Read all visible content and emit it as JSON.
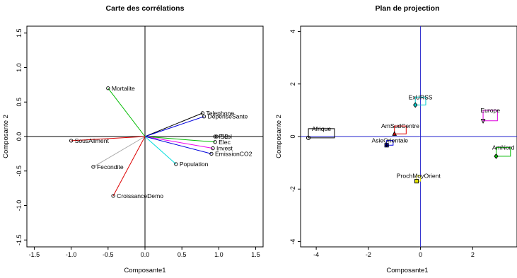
{
  "chart_data": [
    {
      "type": "scatter",
      "subtype": "correlation-circle",
      "title": "Carte des corrélations",
      "xlabel": "Composante1",
      "ylabel": "Composante 2",
      "xlim": [
        -1.6,
        1.6
      ],
      "ylim": [
        -1.6,
        1.6
      ],
      "xticks": [
        "-1.5",
        "-1.0",
        "-0.5",
        "0.0",
        "0.5",
        "1.0",
        "1.5"
      ],
      "xtick_values": [
        -1.5,
        -1.0,
        -0.5,
        0.0,
        0.5,
        1.0,
        1.5
      ],
      "yticks": [
        "-1.5",
        "-1.0",
        "-0.5",
        "0.0",
        "0.5",
        "1.0",
        "1.5"
      ],
      "ytick_values": [
        -1.5,
        -1.0,
        -0.5,
        0.0,
        0.5,
        1.0,
        1.5
      ],
      "points": [
        {
          "label": "Mortalite",
          "x": -0.5,
          "y": 0.7,
          "color": "#00bb00"
        },
        {
          "label": "Telephone",
          "x": 0.78,
          "y": 0.34,
          "color": "#000000"
        },
        {
          "label": "DepenseSante",
          "x": 0.8,
          "y": 0.29,
          "color": "#0000dd"
        },
        {
          "label": "PIB",
          "x": 0.95,
          "y": 0.0,
          "color": "#000000"
        },
        {
          "label": "Scol",
          "x": 0.97,
          "y": 0.0,
          "color": "#000000"
        },
        {
          "label": "Elec",
          "x": 0.95,
          "y": -0.08,
          "color": "#00bb00"
        },
        {
          "label": "Invest",
          "x": 0.92,
          "y": -0.17,
          "color": "#ee00ee"
        },
        {
          "label": "EmissionCO2",
          "x": 0.9,
          "y": -0.25,
          "color": "#0000dd"
        },
        {
          "label": "Population",
          "x": 0.42,
          "y": -0.4,
          "color": "#00dddd"
        },
        {
          "label": "SousAliment",
          "x": -1.0,
          "y": -0.06,
          "color": "#dd0000"
        },
        {
          "label": "Fecondite",
          "x": -0.7,
          "y": -0.44,
          "color": "#aaaaaa"
        },
        {
          "label": "CroissanceDemo",
          "x": -0.43,
          "y": -0.86,
          "color": "#dd0000"
        }
      ]
    },
    {
      "type": "scatter",
      "subtype": "projection",
      "title": "Plan de projection",
      "xlabel": "Composante1",
      "ylabel": "Composante 2",
      "xlim": [
        -4.6,
        3.7
      ],
      "ylim": [
        -4.2,
        4.2
      ],
      "xticks": [
        "-4",
        "-2",
        "0",
        "2"
      ],
      "xtick_values": [
        -4,
        -2,
        0,
        2
      ],
      "yticks": [
        "-4",
        "-2",
        "0",
        "2",
        "4"
      ],
      "ytick_values": [
        -4,
        -2,
        0,
        2,
        4
      ],
      "groups": [
        {
          "label": "Afrique",
          "x": -4.3,
          "y": -0.05,
          "bx": -3.3,
          "by": 0.3,
          "color": "#000000",
          "marker": "circle"
        },
        {
          "label": "ExURSS",
          "x": -0.2,
          "y": 1.2,
          "bx": 0.2,
          "by": 1.5,
          "color": "#00cccc",
          "marker": "diamond"
        },
        {
          "label": "AmSudCentre",
          "x": -1.0,
          "y": 0.1,
          "bx": -0.55,
          "by": 0.4,
          "color": "#dd0000",
          "marker": "triangle"
        },
        {
          "label": "AsieOrientale",
          "x": -1.3,
          "y": -0.33,
          "bx": -1.05,
          "by": -0.15,
          "color": "#0000dd",
          "marker": "cross"
        },
        {
          "label": "Europe",
          "x": 2.4,
          "y": 0.6,
          "bx": 2.95,
          "by": 1.0,
          "color": "#dd00dd",
          "marker": "triangle-down"
        },
        {
          "label": "AmNord",
          "x": 2.9,
          "y": -0.75,
          "bx": 3.45,
          "by": -0.42,
          "color": "#00bb00",
          "marker": "diamond"
        },
        {
          "label": "ProchMoyOrient",
          "x": -0.15,
          "y": -1.7,
          "bx": 0.0,
          "by": -1.5,
          "color": "#dddd00",
          "marker": "square"
        }
      ]
    }
  ]
}
